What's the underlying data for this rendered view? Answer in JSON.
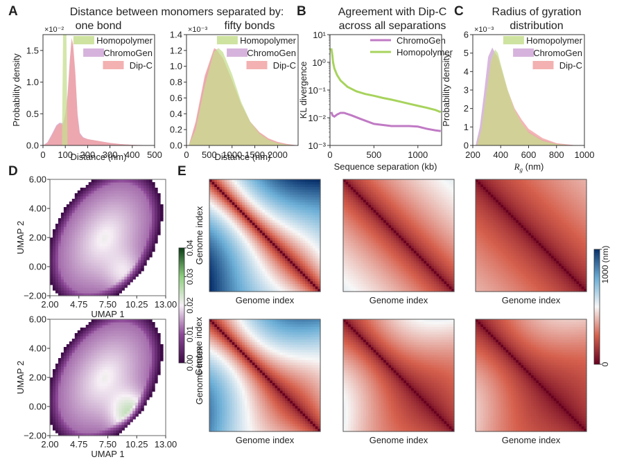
{
  "panel_labels": {
    "A": "A",
    "B": "B",
    "C": "C",
    "D": "D",
    "E": "E"
  },
  "colors": {
    "homopolymer": "#c5de8f",
    "chromogen": "#cfa6d6",
    "dipc": "#f1a3a3",
    "chromogen_line": "#c07ac4",
    "homopolymer_line": "#a7d35c"
  },
  "chart_data": [
    {
      "id": "A1",
      "type": "area",
      "title": "Distance between monomers separated by:",
      "subtitle": "one bond",
      "xlabel": "Distance (nm)",
      "ylabel": "Probability density",
      "scale_label": "×10⁻²",
      "xlim": [
        0,
        500
      ],
      "ylim": [
        0,
        1.75
      ],
      "xticks": [
        "0",
        "100",
        "200",
        "300",
        "400",
        "500"
      ],
      "xtick_values": [
        0,
        100,
        200,
        300,
        400,
        500
      ],
      "yticks": [
        "0.0",
        "0.5",
        "1.0",
        "1.5"
      ],
      "ytick_values": [
        0,
        0.5,
        1.0,
        1.5
      ],
      "legend": [
        "Homopolymer",
        "ChromoGen",
        "Dip-C"
      ],
      "legend_position": "top-right",
      "series": [
        {
          "name": "Homopolymer",
          "x": [
            85,
            90,
            95,
            100,
            105,
            110
          ],
          "y": [
            0,
            1.75,
            1.75,
            1.75,
            1.75,
            0
          ]
        },
        {
          "name": "ChromoGen",
          "x": [
            0,
            20,
            40,
            60,
            75,
            90,
            100,
            110,
            120,
            128,
            135,
            145,
            155,
            165,
            180,
            200,
            250,
            300,
            350,
            400,
            450,
            500
          ],
          "y": [
            0,
            0.05,
            0.18,
            0.32,
            0.36,
            0.35,
            0.5,
            0.8,
            1.35,
            1.65,
            1.55,
            1.1,
            0.5,
            0.2,
            0.13,
            0.1,
            0.07,
            0.04,
            0.02,
            0.01,
            0.005,
            0
          ]
        },
        {
          "name": "Dip-C",
          "x": [
            0,
            20,
            40,
            60,
            75,
            90,
            100,
            110,
            120,
            128,
            135,
            145,
            155,
            165,
            180,
            200,
            250,
            300,
            350,
            400,
            450,
            500
          ],
          "y": [
            0,
            0.04,
            0.16,
            0.3,
            0.35,
            0.32,
            0.45,
            0.75,
            1.3,
            1.7,
            1.6,
            1.15,
            0.45,
            0.18,
            0.12,
            0.1,
            0.07,
            0.04,
            0.02,
            0.01,
            0.005,
            0
          ]
        }
      ]
    },
    {
      "id": "A2",
      "type": "area",
      "subtitle": "fifty bonds",
      "xlabel": "Distance (nm)",
      "ylabel": "",
      "scale_label": "×10⁻³",
      "xlim": [
        0,
        2450
      ],
      "ylim": [
        0,
        1.4
      ],
      "xticks": [
        "0",
        "500",
        "1000",
        "1500",
        "2000"
      ],
      "xtick_values": [
        0,
        500,
        1000,
        1500,
        2000
      ],
      "yticks": [
        "0.0",
        "0.2",
        "0.4",
        "0.6",
        "0.8",
        "1.0",
        "1.2",
        "1.4"
      ],
      "ytick_values": [
        0,
        0.2,
        0.4,
        0.6,
        0.8,
        1.0,
        1.2,
        1.4
      ],
      "legend": [
        "Homopolymer",
        "ChromoGen",
        "Dip-C"
      ],
      "legend_position": "top-right",
      "series": [
        {
          "name": "Homopolymer",
          "x": [
            50,
            200,
            400,
            600,
            700,
            800,
            1000,
            1200,
            1400,
            1600,
            1800,
            2000,
            2200,
            2450
          ],
          "y": [
            0,
            0.2,
            0.75,
            1.18,
            1.23,
            1.18,
            0.9,
            0.55,
            0.3,
            0.15,
            0.07,
            0.03,
            0.01,
            0
          ]
        },
        {
          "name": "ChromoGen",
          "x": [
            50,
            200,
            400,
            600,
            650,
            800,
            1000,
            1200,
            1400,
            1600,
            1800,
            2000,
            2200,
            2450
          ],
          "y": [
            0,
            0.28,
            0.85,
            1.2,
            1.22,
            1.1,
            0.82,
            0.52,
            0.3,
            0.16,
            0.08,
            0.04,
            0.015,
            0
          ]
        },
        {
          "name": "Dip-C",
          "x": [
            50,
            200,
            400,
            600,
            620,
            800,
            1000,
            1200,
            1400,
            1600,
            1800,
            2000,
            2200,
            2450
          ],
          "y": [
            0,
            0.3,
            0.88,
            1.22,
            1.23,
            1.1,
            0.82,
            0.52,
            0.3,
            0.17,
            0.09,
            0.045,
            0.02,
            0
          ]
        }
      ]
    },
    {
      "id": "B",
      "type": "line",
      "title": "Agreement with Dip-C",
      "subtitle": "across all separations",
      "xlabel": "Sequence separation (kb)",
      "ylabel": "KL divergence",
      "yscale": "log",
      "xlim": [
        0,
        1270
      ],
      "ylim": [
        0.001,
        10
      ],
      "xticks": [
        "0",
        "500",
        "1000"
      ],
      "xtick_values": [
        0,
        500,
        1000
      ],
      "yticks": [
        "10¹",
        "10⁰",
        "10⁻¹",
        "10⁻²",
        "10⁻³"
      ],
      "ytick_values": [
        10,
        1,
        0.1,
        0.01,
        0.001
      ],
      "legend": [
        "ChromoGen",
        "Homopolymer"
      ],
      "legend_position": "top-right",
      "series": [
        {
          "name": "ChromoGen",
          "x": [
            15,
            30,
            50,
            80,
            120,
            160,
            250,
            350,
            500,
            700,
            900,
            1000,
            1100,
            1200,
            1260
          ],
          "y": [
            0.016,
            0.012,
            0.011,
            0.013,
            0.015,
            0.015,
            0.012,
            0.009,
            0.006,
            0.005,
            0.005,
            0.0048,
            0.004,
            0.0035,
            0.0033
          ]
        },
        {
          "name": "Homopolymer",
          "x": [
            15,
            25,
            35,
            50,
            80,
            120,
            200,
            300,
            400,
            500,
            600,
            700,
            800,
            900,
            1000,
            1100,
            1200,
            1260
          ],
          "y": [
            3.2,
            2.0,
            1.0,
            0.6,
            0.35,
            0.22,
            0.13,
            0.09,
            0.072,
            0.062,
            0.052,
            0.045,
            0.038,
            0.032,
            0.027,
            0.023,
            0.019,
            0.016
          ]
        }
      ]
    },
    {
      "id": "C",
      "type": "area",
      "title": "Radius of gyration",
      "subtitle": "distribution",
      "xlabel": "R_g (nm)",
      "ylabel": "Probability density",
      "scale_label": "×10⁻³",
      "xlim": [
        200,
        1000
      ],
      "ylim": [
        0,
        6
      ],
      "xticks": [
        "200",
        "400",
        "600",
        "800",
        "1000"
      ],
      "xtick_values": [
        200,
        400,
        600,
        800,
        1000
      ],
      "yticks": [
        "0",
        "1",
        "2",
        "3",
        "4",
        "5",
        "6"
      ],
      "ytick_values": [
        0,
        1,
        2,
        3,
        4,
        5,
        6
      ],
      "legend": [
        "Homopolymer",
        "ChromoGen",
        "Dip-C"
      ],
      "legend_position": "top-right",
      "series": [
        {
          "name": "Homopolymer",
          "x": [
            230,
            260,
            300,
            330,
            360,
            380,
            400,
            450,
            500,
            550,
            600,
            700,
            800,
            900
          ],
          "y": [
            0,
            0.8,
            3.0,
            4.6,
            5.2,
            5.0,
            4.4,
            3.0,
            1.9,
            1.2,
            0.7,
            0.25,
            0.07,
            0
          ]
        },
        {
          "name": "ChromoGen",
          "x": [
            220,
            250,
            280,
            310,
            340,
            360,
            400,
            450,
            500,
            550,
            600,
            700,
            800,
            900
          ],
          "y": [
            0,
            1.0,
            2.8,
            4.8,
            5.3,
            5.0,
            4.1,
            2.8,
            1.8,
            1.15,
            0.75,
            0.3,
            0.1,
            0
          ]
        },
        {
          "name": "Dip-C",
          "x": [
            230,
            260,
            300,
            330,
            360,
            380,
            400,
            450,
            500,
            550,
            600,
            700,
            800,
            950
          ],
          "y": [
            0,
            0.8,
            2.9,
            4.5,
            5.0,
            4.8,
            4.3,
            3.0,
            2.0,
            1.4,
            0.9,
            0.4,
            0.12,
            0
          ]
        }
      ]
    },
    {
      "id": "D",
      "type": "heatmap",
      "xlabel": "UMAP 1",
      "ylabel": "UMAP 2",
      "xlim": [
        2.0,
        13.0
      ],
      "ylim": [
        -2.0,
        6.0
      ],
      "xticks": [
        "2.00",
        "4.75",
        "7.50",
        "10.25",
        "13.00"
      ],
      "xtick_values": [
        2.0,
        4.75,
        7.5,
        10.25,
        13.0
      ],
      "yticks": [
        "6.00",
        "4.00",
        "2.00",
        "0.00",
        "−2.00"
      ],
      "ytick_values": [
        6,
        4,
        2,
        0,
        -2
      ],
      "colorbar": {
        "label": "Genome index",
        "ticks": [
          "0.00",
          "0.01",
          "0.02",
          "0.03",
          "0.04"
        ],
        "range": [
          0,
          0.04
        ]
      },
      "panels": [
        {
          "name": "top",
          "peak": [
            9.3,
            -0.6
          ],
          "peak_value": 0.027
        },
        {
          "name": "bottom",
          "peak": [
            9.8,
            -0.6
          ],
          "peak_value": 0.034
        }
      ]
    },
    {
      "id": "E",
      "type": "heatmap",
      "xlabel": "Genome index",
      "ylabel": "Genome index",
      "colorbar": {
        "label": "(nm)",
        "ticks": [
          "0",
          "1000"
        ],
        "range": [
          0,
          1000
        ]
      },
      "grid": "2x3",
      "panels": [
        {
          "row": 0,
          "col": 0,
          "pattern": "strong-far"
        },
        {
          "row": 0,
          "col": 1,
          "pattern": "moderate"
        },
        {
          "row": 0,
          "col": 2,
          "pattern": "weak"
        },
        {
          "row": 1,
          "col": 0,
          "pattern": "strong-asym"
        },
        {
          "row": 1,
          "col": 1,
          "pattern": "moderate-domain"
        },
        {
          "row": 1,
          "col": 2,
          "pattern": "weak-domain"
        }
      ]
    }
  ]
}
